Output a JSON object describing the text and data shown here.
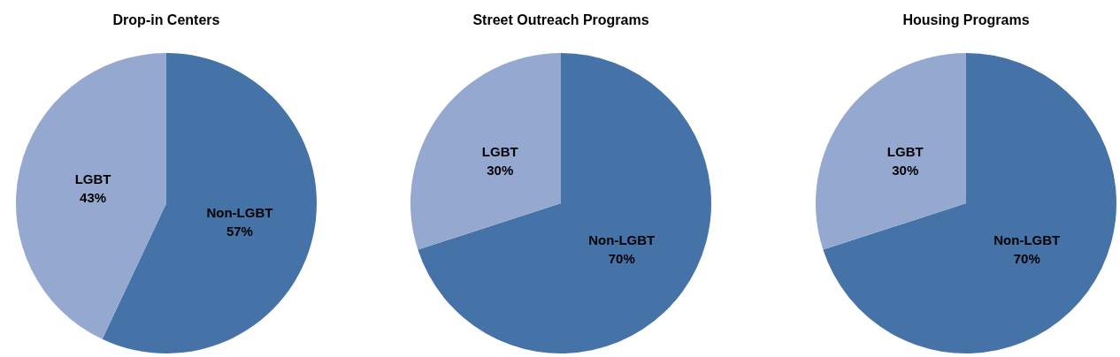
{
  "chart_data": [
    {
      "type": "pie",
      "title": "Drop-in Centers",
      "categories": [
        "Non-LGBT",
        "LGBT"
      ],
      "values": [
        57,
        43
      ],
      "colors": [
        "#4673a7",
        "#95a9d0"
      ],
      "value_labels": [
        "57%",
        "43%"
      ]
    },
    {
      "type": "pie",
      "title": "Street Outreach Programs",
      "categories": [
        "Non-LGBT",
        "LGBT"
      ],
      "values": [
        70,
        30
      ],
      "colors": [
        "#4673a7",
        "#95a9d0"
      ],
      "value_labels": [
        "70%",
        "30%"
      ]
    },
    {
      "type": "pie",
      "title": "Housing Programs",
      "categories": [
        "Non-LGBT",
        "LGBT"
      ],
      "values": [
        70,
        30
      ],
      "colors": [
        "#4673a7",
        "#95a9d0"
      ],
      "value_labels": [
        "70%",
        "30%"
      ]
    }
  ]
}
